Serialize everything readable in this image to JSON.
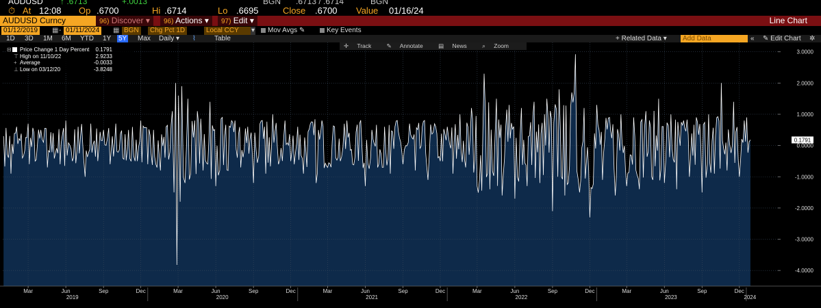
{
  "quote": {
    "ticker": "AUDUSD",
    "last": "↑ .6713",
    "change": "+.0013",
    "source1": "BGN",
    "bid_ask": ".6713 / .6714",
    "source2": "BGN",
    "at_label": "At",
    "time": "12:08",
    "open_label": "Op",
    "open": ".6700",
    "hi_label": "Hi",
    "hi": ".6714",
    "lo_label": "Lo",
    "lo": ".6695",
    "close_label": "Close",
    "close": ".6700",
    "value_label": "Value",
    "value_date": "01/16/24"
  },
  "command_bar": {
    "security": "AUDUSD Curncy",
    "discover_num": "96)",
    "discover": "Discover",
    "actions_num": "96)",
    "actions": "Actions",
    "edit_num": "97)",
    "edit": "Edit",
    "chart_type": "Line Chart"
  },
  "params": {
    "start_date": "01/12/2019",
    "end_date": "01/11/2024",
    "source": "BGN",
    "field": "Chg Pct 1D",
    "currency": "Local CCY",
    "mov_avgs": "Mov Avgs",
    "key_events": "Key Events"
  },
  "range": {
    "buttons": [
      "1D",
      "3D",
      "1M",
      "6M",
      "YTD",
      "1Y",
      "5Y",
      "Max"
    ],
    "selected": "5Y",
    "frequency": "Daily",
    "table": "Table",
    "related": "+ Related Data",
    "add_data": "Add Data",
    "edit_chart": "Edit Chart"
  },
  "toolbar": {
    "track": "Track",
    "annotate": "Annotate",
    "news": "News",
    "zoom": "Zoom"
  },
  "legend": {
    "series": "Price Change 1 Day Percent",
    "last": "0.1791",
    "high_label": "High on 11/10/22",
    "high": "2.9233",
    "avg_label": "Average",
    "avg": "-0.0033",
    "low_label": "Low on 03/12/20",
    "low": "-3.8248"
  },
  "colors": {
    "background": "#000000",
    "area_fill": "#0e2a4a",
    "line": "#ffffff",
    "grid": "#3a4a5c",
    "command_bar": "#7a0f12",
    "accent": "#f5a623"
  },
  "chart_data": {
    "type": "line",
    "title": "",
    "xlabel": "",
    "ylabel": "",
    "ylim": [
      -4.5,
      3.3
    ],
    "y_ticks": [
      3,
      2,
      1,
      0,
      -1,
      -2,
      -3,
      -4
    ],
    "y_tick_labels": [
      "3.0000",
      "2.0000",
      "1.0000",
      "0.0000",
      "-1.0000",
      "-2.0000",
      "-3.0000",
      "-4.0000"
    ],
    "last_value": 0.1791,
    "month_ticks": [
      {
        "label": "Mar",
        "date": "2019-03-15"
      },
      {
        "label": "Jun",
        "date": "2019-06-15"
      },
      {
        "label": "Sep",
        "date": "2019-09-15"
      },
      {
        "label": "Dec",
        "date": "2019-12-15"
      },
      {
        "label": "Mar",
        "date": "2020-03-15"
      },
      {
        "label": "Jun",
        "date": "2020-06-15"
      },
      {
        "label": "Sep",
        "date": "2020-09-15"
      },
      {
        "label": "Dec",
        "date": "2020-12-15"
      },
      {
        "label": "Mar",
        "date": "2021-03-15"
      },
      {
        "label": "Jun",
        "date": "2021-06-15"
      },
      {
        "label": "Sep",
        "date": "2021-09-15"
      },
      {
        "label": "Dec",
        "date": "2021-12-15"
      },
      {
        "label": "Mar",
        "date": "2022-03-15"
      },
      {
        "label": "Jun",
        "date": "2022-06-15"
      },
      {
        "label": "Sep",
        "date": "2022-09-15"
      },
      {
        "label": "Dec",
        "date": "2022-12-15"
      },
      {
        "label": "Mar",
        "date": "2023-03-15"
      },
      {
        "label": "Jun",
        "date": "2023-06-15"
      },
      {
        "label": "Sep",
        "date": "2023-09-15"
      },
      {
        "label": "Dec",
        "date": "2023-12-15"
      }
    ],
    "year_labels": [
      {
        "label": "2019",
        "date": "2019-07-01"
      },
      {
        "label": "2020",
        "date": "2020-07-01"
      },
      {
        "label": "2021",
        "date": "2021-07-01"
      },
      {
        "label": "2022",
        "date": "2022-07-01"
      },
      {
        "label": "2023",
        "date": "2023-07-01"
      },
      {
        "label": "2024",
        "date": "2024-01-10"
      }
    ],
    "year_separators": [
      "2020-01-01",
      "2021-01-01",
      "2022-01-01",
      "2023-01-01",
      "2024-01-01"
    ],
    "x_start": "2019-01-12",
    "x_end": "2024-01-11",
    "x_axis_end": "2024-03-18",
    "series": [
      {
        "points": [
          [
            "2019-01-14",
            0.3
          ],
          [
            "2019-02-01",
            -0.9
          ],
          [
            "2019-02-15",
            0.6
          ],
          [
            "2019-03-01",
            -0.4
          ],
          [
            "2019-03-15",
            0.7
          ],
          [
            "2019-04-01",
            -0.5
          ],
          [
            "2019-04-15",
            0.5
          ],
          [
            "2019-05-01",
            -0.7
          ],
          [
            "2019-05-15",
            0.4
          ],
          [
            "2019-06-01",
            -0.6
          ],
          [
            "2019-06-15",
            0.8
          ],
          [
            "2019-07-01",
            -0.5
          ],
          [
            "2019-07-15",
            0.6
          ],
          [
            "2019-08-01",
            -1.0
          ],
          [
            "2019-08-15",
            0.7
          ],
          [
            "2019-09-01",
            -0.5
          ],
          [
            "2019-09-15",
            0.5
          ],
          [
            "2019-10-01",
            -0.6
          ],
          [
            "2019-10-15",
            0.7
          ],
          [
            "2019-11-01",
            -0.4
          ],
          [
            "2019-11-15",
            0.5
          ],
          [
            "2019-12-01",
            -0.5
          ],
          [
            "2019-12-15",
            0.8
          ],
          [
            "2020-01-01",
            -0.6
          ],
          [
            "2020-01-15",
            0.5
          ],
          [
            "2020-02-01",
            -0.8
          ],
          [
            "2020-02-15",
            0.6
          ],
          [
            "2020-03-01",
            1.1
          ],
          [
            "2020-03-05",
            -1.5
          ],
          [
            "2020-03-09",
            2.0
          ],
          [
            "2020-03-12",
            -3.82
          ],
          [
            "2020-03-16",
            1.6
          ],
          [
            "2020-03-20",
            -1.8
          ],
          [
            "2020-03-24",
            1.9
          ],
          [
            "2020-04-01",
            -1.2
          ],
          [
            "2020-04-08",
            1.5
          ],
          [
            "2020-04-15",
            -0.9
          ],
          [
            "2020-05-01",
            1.1
          ],
          [
            "2020-05-15",
            -0.8
          ],
          [
            "2020-06-01",
            1.4
          ],
          [
            "2020-06-15",
            -1.3
          ],
          [
            "2020-07-01",
            0.9
          ],
          [
            "2020-07-15",
            -0.8
          ],
          [
            "2020-08-01",
            0.8
          ],
          [
            "2020-08-15",
            -0.7
          ],
          [
            "2020-09-01",
            0.6
          ],
          [
            "2020-09-15",
            -1.2
          ],
          [
            "2020-10-01",
            0.7
          ],
          [
            "2020-10-15",
            -0.9
          ],
          [
            "2020-11-01",
            1.0
          ],
          [
            "2020-11-15",
            -0.6
          ],
          [
            "2020-12-01",
            0.8
          ],
          [
            "2020-12-15",
            -0.5
          ],
          [
            "2021-01-01",
            0.6
          ],
          [
            "2021-01-15",
            -0.9
          ],
          [
            "2021-02-01",
            0.7
          ],
          [
            "2021-02-15",
            -1.2
          ],
          [
            "2021-03-01",
            0.8
          ],
          [
            "2021-03-15",
            -0.7
          ],
          [
            "2021-04-01",
            0.6
          ],
          [
            "2021-04-15",
            -0.5
          ],
          [
            "2021-05-01",
            0.8
          ],
          [
            "2021-05-15",
            -0.6
          ],
          [
            "2021-06-01",
            0.7
          ],
          [
            "2021-06-15",
            -1.3
          ],
          [
            "2021-07-01",
            0.5
          ],
          [
            "2021-07-15",
            -0.7
          ],
          [
            "2021-08-01",
            0.6
          ],
          [
            "2021-08-15",
            -0.9
          ],
          [
            "2021-09-01",
            0.8
          ],
          [
            "2021-09-15",
            -0.6
          ],
          [
            "2021-10-01",
            0.7
          ],
          [
            "2021-10-15",
            -0.8
          ],
          [
            "2021-11-01",
            0.6
          ],
          [
            "2021-11-15",
            -1.1
          ],
          [
            "2021-12-01",
            0.7
          ],
          [
            "2021-12-15",
            -0.5
          ],
          [
            "2022-01-01",
            0.6
          ],
          [
            "2022-01-15",
            -0.9
          ],
          [
            "2022-02-01",
            1.0
          ],
          [
            "2022-02-15",
            -0.7
          ],
          [
            "2022-03-01",
            1.2
          ],
          [
            "2022-03-15",
            -1.3
          ],
          [
            "2022-04-01",
            2.3
          ],
          [
            "2022-04-15",
            -1.4
          ],
          [
            "2022-05-01",
            1.5
          ],
          [
            "2022-05-15",
            -1.6
          ],
          [
            "2022-06-01",
            1.3
          ],
          [
            "2022-06-15",
            -1.7
          ],
          [
            "2022-07-01",
            1.2
          ],
          [
            "2022-07-15",
            -1.3
          ],
          [
            "2022-08-01",
            1.4
          ],
          [
            "2022-08-15",
            -1.2
          ],
          [
            "2022-09-01",
            1.5
          ],
          [
            "2022-09-15",
            -2.1
          ],
          [
            "2022-10-01",
            1.8
          ],
          [
            "2022-10-15",
            -1.6
          ],
          [
            "2022-11-01",
            1.7
          ],
          [
            "2022-11-10",
            2.92
          ],
          [
            "2022-11-20",
            -1.5
          ],
          [
            "2022-12-01",
            1.2
          ],
          [
            "2022-12-15",
            -2.3
          ],
          [
            "2023-01-01",
            1.3
          ],
          [
            "2023-01-15",
            -1.1
          ],
          [
            "2023-02-01",
            0.9
          ],
          [
            "2023-02-15",
            -1.6
          ],
          [
            "2023-03-01",
            1.0
          ],
          [
            "2023-03-15",
            -1.3
          ],
          [
            "2023-04-01",
            0.9
          ],
          [
            "2023-04-15",
            -1.4
          ],
          [
            "2023-05-01",
            1.1
          ],
          [
            "2023-05-15",
            -1.0
          ],
          [
            "2023-06-01",
            1.5
          ],
          [
            "2023-06-15",
            -1.2
          ],
          [
            "2023-07-01",
            1.0
          ],
          [
            "2023-07-15",
            -1.4
          ],
          [
            "2023-08-01",
            0.8
          ],
          [
            "2023-08-15",
            -1.0
          ],
          [
            "2023-09-01",
            0.9
          ],
          [
            "2023-09-15",
            -1.5
          ],
          [
            "2023-10-01",
            1.0
          ],
          [
            "2023-10-15",
            -0.9
          ],
          [
            "2023-11-01",
            2.0
          ],
          [
            "2023-11-15",
            -0.8
          ],
          [
            "2023-12-01",
            1.4
          ],
          [
            "2023-12-15",
            -1.0
          ],
          [
            "2024-01-02",
            0.9
          ],
          [
            "2024-01-11",
            0.18
          ]
        ]
      }
    ]
  }
}
